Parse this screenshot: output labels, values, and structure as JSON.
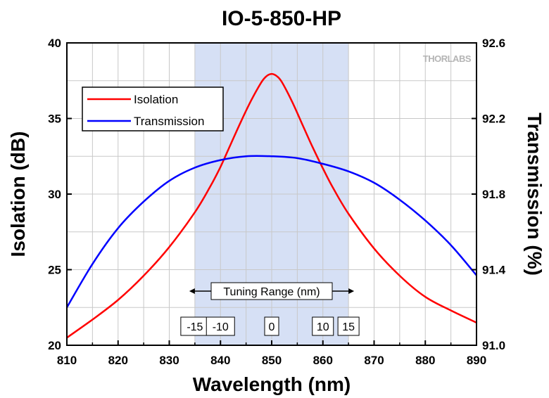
{
  "chart_data": {
    "type": "line",
    "title": "IO-5-850-HP",
    "xlabel": "Wavelength (nm)",
    "ylabel": "Isolation (dB)",
    "y2label": "Transmission (%)",
    "xlim": [
      810,
      890
    ],
    "ylim": [
      20,
      40
    ],
    "y2lim": [
      91.0,
      92.6
    ],
    "x_ticks": [
      810,
      820,
      830,
      840,
      850,
      860,
      870,
      880,
      890
    ],
    "y_ticks": [
      20,
      25,
      30,
      35,
      40
    ],
    "y2_ticks": [
      "91.0",
      "91.4",
      "91.8",
      "92.2",
      "92.6"
    ],
    "grid": true,
    "legend_position": "top-left",
    "shaded_region": {
      "x": [
        835,
        865
      ],
      "color": "#d6e0f5"
    },
    "series": [
      {
        "name": "Isolation",
        "axis": "left",
        "color": "#ff0000",
        "x": [
          810,
          815,
          820,
          825,
          830,
          835,
          838,
          840,
          842,
          844,
          846,
          848,
          849,
          850,
          851,
          852,
          854,
          856,
          858,
          860,
          862,
          865,
          870,
          875,
          880,
          885,
          890
        ],
        "y": [
          20.5,
          21.7,
          23.0,
          24.6,
          26.5,
          28.8,
          30.5,
          31.8,
          33.3,
          34.8,
          36.2,
          37.4,
          37.8,
          37.95,
          37.8,
          37.4,
          36.1,
          34.6,
          33.1,
          31.7,
          30.4,
          28.7,
          26.4,
          24.6,
          23.2,
          22.3,
          21.5
        ]
      },
      {
        "name": "Transmission",
        "axis": "right",
        "color": "#0000ff",
        "x": [
          810,
          815,
          820,
          825,
          830,
          835,
          840,
          845,
          850,
          855,
          860,
          865,
          870,
          875,
          880,
          885,
          890
        ],
        "y": [
          91.2,
          91.43,
          91.62,
          91.76,
          91.87,
          91.94,
          91.98,
          92.0,
          92.0,
          91.99,
          91.96,
          91.92,
          91.86,
          91.77,
          91.66,
          91.53,
          91.37
        ]
      }
    ],
    "annotations": {
      "tuning_label": "Tuning Range (nm)",
      "markers": [
        {
          "x": 835,
          "label": "-15"
        },
        {
          "x": 840,
          "label": "-10"
        },
        {
          "x": 850,
          "label": "0"
        },
        {
          "x": 860,
          "label": "10"
        },
        {
          "x": 865,
          "label": "15"
        }
      ]
    },
    "logo": "THORLABS"
  }
}
